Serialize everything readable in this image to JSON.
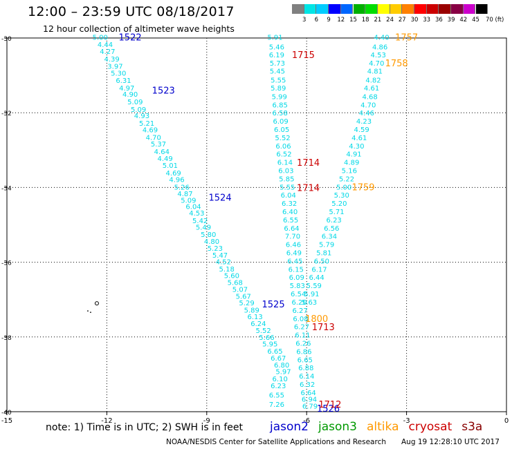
{
  "header": {
    "title": "12:00 – 23:59 UTC 08/18/2017",
    "subtitle": "12 hour collection of altimeter wave heights"
  },
  "colorbar": {
    "colors": [
      "#808080",
      "#00e5e5",
      "#00ccff",
      "#0000ff",
      "#0066ff",
      "#00b000",
      "#00dd00",
      "#ffff00",
      "#ffcc00",
      "#ff8000",
      "#ff0000",
      "#cc0000",
      "#990000",
      "#880044",
      "#cc00cc",
      "#000000"
    ],
    "ticks": [
      "3",
      "6",
      "9",
      "12",
      "15",
      "18",
      "21",
      "24",
      "27",
      "30",
      "33",
      "36",
      "39",
      "42",
      "45",
      "70 (ft)"
    ]
  },
  "map": {
    "x_axis": {
      "range": [
        -15,
        0
      ],
      "ticks": [
        -15,
        -12,
        -9,
        -6,
        -3,
        0
      ],
      "tick_labels": [
        "-15",
        "-12",
        "-9",
        "-6",
        "-3",
        "0"
      ]
    },
    "y_axis": {
      "range": [
        -40,
        -30
      ],
      "ticks": [
        -40,
        -38,
        -36,
        -34,
        -32,
        -30
      ],
      "tick_labels": [
        "-40",
        "-38",
        "-36",
        "-34",
        "-32",
        "-30"
      ]
    },
    "grid": "dotted",
    "wave_color": "#00d8e6",
    "island": {
      "label": "small island",
      "lon": -12.3,
      "lat": -37.1
    },
    "tracks": [
      {
        "satellite": "jason2",
        "color": "#00d8e6",
        "points": [
          {
            "lon": -12.2,
            "lat": -29.97,
            "swh": "5.00"
          },
          {
            "lon": -12.05,
            "lat": -30.17,
            "swh": "4.44"
          },
          {
            "lon": -11.98,
            "lat": -30.35,
            "swh": "4.27"
          },
          {
            "lon": -11.85,
            "lat": -30.55,
            "swh": "4.39"
          },
          {
            "lon": -11.75,
            "lat": -30.75,
            "swh": "3.97"
          },
          {
            "lon": -11.65,
            "lat": -30.93,
            "swh": "5.30"
          },
          {
            "lon": -11.5,
            "lat": -31.13,
            "swh": "6.31"
          },
          {
            "lon": -11.4,
            "lat": -31.33,
            "swh": "4.97"
          },
          {
            "lon": -11.3,
            "lat": -31.5,
            "swh": "4.90"
          },
          {
            "lon": -11.15,
            "lat": -31.7,
            "swh": "5.09"
          },
          {
            "lon": -11.05,
            "lat": -31.9,
            "swh": "5.09"
          },
          {
            "lon": -10.95,
            "lat": -32.07,
            "swh": "4.93"
          },
          {
            "lon": -10.8,
            "lat": -32.27,
            "swh": "5.21"
          },
          {
            "lon": -10.7,
            "lat": -32.45,
            "swh": "4.69"
          },
          {
            "lon": -10.6,
            "lat": -32.65,
            "swh": "4.70"
          },
          {
            "lon": -10.45,
            "lat": -32.83,
            "swh": "5.37"
          },
          {
            "lon": -10.35,
            "lat": -33.03,
            "swh": "4.64"
          },
          {
            "lon": -10.25,
            "lat": -33.22,
            "swh": "4.49"
          },
          {
            "lon": -10.1,
            "lat": -33.4,
            "swh": "5.01"
          },
          {
            "lon": -10.0,
            "lat": -33.6,
            "swh": "4.69"
          },
          {
            "lon": -9.9,
            "lat": -33.78,
            "swh": "4.96"
          },
          {
            "lon": -9.75,
            "lat": -33.98,
            "swh": "5.26"
          },
          {
            "lon": -9.65,
            "lat": -34.16,
            "swh": "4.87"
          },
          {
            "lon": -9.55,
            "lat": -34.33,
            "swh": "5.09"
          },
          {
            "lon": -9.4,
            "lat": -34.5,
            "swh": "6.04"
          },
          {
            "lon": -9.3,
            "lat": -34.68,
            "swh": "4.53"
          },
          {
            "lon": -9.2,
            "lat": -34.88,
            "swh": "5.42"
          },
          {
            "lon": -9.1,
            "lat": -35.06,
            "swh": "5.49"
          },
          {
            "lon": -8.95,
            "lat": -35.25,
            "swh": "5.80"
          },
          {
            "lon": -8.85,
            "lat": -35.43,
            "swh": "4.80"
          },
          {
            "lon": -8.75,
            "lat": -35.62,
            "swh": "5.23"
          },
          {
            "lon": -8.6,
            "lat": -35.8,
            "swh": "5.47"
          },
          {
            "lon": -8.5,
            "lat": -35.98,
            "swh": "4.52"
          },
          {
            "lon": -8.4,
            "lat": -36.17,
            "swh": "5.18"
          },
          {
            "lon": -8.25,
            "lat": -36.35,
            "swh": "5.60"
          },
          {
            "lon": -8.15,
            "lat": -36.53,
            "swh": "5.68"
          },
          {
            "lon": -8.0,
            "lat": -36.72,
            "swh": "5.07"
          },
          {
            "lon": -7.9,
            "lat": -36.9,
            "swh": "5.67"
          },
          {
            "lon": -7.8,
            "lat": -37.08,
            "swh": "5.29"
          },
          {
            "lon": -7.65,
            "lat": -37.27,
            "swh": "5.89"
          },
          {
            "lon": -7.55,
            "lat": -37.45,
            "swh": "6.13"
          },
          {
            "lon": -7.45,
            "lat": -37.63,
            "swh": "6.24"
          },
          {
            "lon": -7.3,
            "lat": -37.82,
            "swh": "5.52"
          },
          {
            "lon": -7.2,
            "lat": -38.0,
            "swh": "5.66"
          },
          {
            "lon": -7.1,
            "lat": -38.18,
            "swh": "5.95"
          },
          {
            "lon": -6.95,
            "lat": -38.37,
            "swh": "6.65"
          },
          {
            "lon": -6.85,
            "lat": -38.56,
            "swh": "6.67"
          },
          {
            "lon": -6.75,
            "lat": -38.74,
            "swh": "6.80"
          },
          {
            "lon": -6.7,
            "lat": -38.92,
            "swh": "5.97"
          },
          {
            "lon": -6.8,
            "lat": -39.11,
            "swh": "6.10"
          },
          {
            "lon": -6.85,
            "lat": -39.3,
            "swh": "6.23"
          },
          {
            "lon": -6.9,
            "lat": -39.55,
            "swh": "6.55"
          },
          {
            "lon": -6.9,
            "lat": -39.8,
            "swh": "7.26"
          }
        ],
        "labels": [
          {
            "lon": -11.3,
            "lat": -29.97,
            "text": "1522"
          },
          {
            "lon": -10.3,
            "lat": -31.4,
            "text": "1523"
          },
          {
            "lon": -8.6,
            "lat": -34.26,
            "text": "1524"
          },
          {
            "lon": -7.0,
            "lat": -37.12,
            "text": "1525"
          },
          {
            "lon": -5.35,
            "lat": -39.91,
            "text": "1526"
          }
        ]
      },
      {
        "satellite": "cryosat",
        "color": "#00d8e6",
        "points": [
          {
            "lon": -6.95,
            "lat": -29.97,
            "swh": "5.91"
          },
          {
            "lon": -6.9,
            "lat": -30.23,
            "swh": "5.46"
          },
          {
            "lon": -6.9,
            "lat": -30.44,
            "swh": "6.19"
          },
          {
            "lon": -6.88,
            "lat": -30.67,
            "swh": "5.73"
          },
          {
            "lon": -6.88,
            "lat": -30.88,
            "swh": "5.45"
          },
          {
            "lon": -6.85,
            "lat": -31.12,
            "swh": "5.55"
          },
          {
            "lon": -6.85,
            "lat": -31.33,
            "swh": "5.89"
          },
          {
            "lon": -6.82,
            "lat": -31.56,
            "swh": "5.99"
          },
          {
            "lon": -6.8,
            "lat": -31.78,
            "swh": "6.85"
          },
          {
            "lon": -6.8,
            "lat": -32.0,
            "swh": "6.58"
          },
          {
            "lon": -6.78,
            "lat": -32.22,
            "swh": "6.09"
          },
          {
            "lon": -6.75,
            "lat": -32.44,
            "swh": "6.05"
          },
          {
            "lon": -6.72,
            "lat": -32.66,
            "swh": "5.52"
          },
          {
            "lon": -6.7,
            "lat": -32.88,
            "swh": "6.06"
          },
          {
            "lon": -6.68,
            "lat": -33.1,
            "swh": "6.52"
          },
          {
            "lon": -6.65,
            "lat": -33.32,
            "swh": "6.14"
          },
          {
            "lon": -6.62,
            "lat": -33.54,
            "swh": "6.03"
          },
          {
            "lon": -6.6,
            "lat": -33.76,
            "swh": "5.85"
          },
          {
            "lon": -6.58,
            "lat": -33.98,
            "swh": "5.55"
          },
          {
            "lon": -6.55,
            "lat": -34.2,
            "swh": "6.04"
          },
          {
            "lon": -6.52,
            "lat": -34.42,
            "swh": "6.32"
          },
          {
            "lon": -6.5,
            "lat": -34.64,
            "swh": "6.40"
          },
          {
            "lon": -6.48,
            "lat": -34.86,
            "swh": "6.55"
          },
          {
            "lon": -6.45,
            "lat": -35.08,
            "swh": "6.64"
          },
          {
            "lon": -6.42,
            "lat": -35.3,
            "swh": "7.70"
          },
          {
            "lon": -6.4,
            "lat": -35.52,
            "swh": "6.46"
          },
          {
            "lon": -6.38,
            "lat": -35.74,
            "swh": "6.49"
          },
          {
            "lon": -6.35,
            "lat": -35.96,
            "swh": "6.45"
          },
          {
            "lon": -6.32,
            "lat": -36.18,
            "swh": "6.15"
          },
          {
            "lon": -6.3,
            "lat": -36.4,
            "swh": "6.09"
          },
          {
            "lon": -6.28,
            "lat": -36.62,
            "swh": "5.83"
          },
          {
            "lon": -6.25,
            "lat": -36.84,
            "swh": "6.54"
          },
          {
            "lon": -6.22,
            "lat": -37.06,
            "swh": "6.20"
          },
          {
            "lon": -6.2,
            "lat": -37.28,
            "swh": "6.27"
          },
          {
            "lon": -6.18,
            "lat": -37.5,
            "swh": "6.08"
          },
          {
            "lon": -6.15,
            "lat": -37.72,
            "swh": "6.27"
          },
          {
            "lon": -6.12,
            "lat": -37.94,
            "swh": "6.11"
          },
          {
            "lon": -6.1,
            "lat": -38.16,
            "swh": "6.26"
          },
          {
            "lon": -6.08,
            "lat": -38.38,
            "swh": "6.86"
          },
          {
            "lon": -6.05,
            "lat": -38.6,
            "swh": "6.65"
          },
          {
            "lon": -6.02,
            "lat": -38.82,
            "swh": "6.88"
          },
          {
            "lon": -6.0,
            "lat": -39.04,
            "swh": "6.14"
          },
          {
            "lon": -5.98,
            "lat": -39.26,
            "swh": "6.32"
          },
          {
            "lon": -5.95,
            "lat": -39.48,
            "swh": "6.64"
          },
          {
            "lon": -5.92,
            "lat": -39.66,
            "swh": "6.94"
          },
          {
            "lon": -5.9,
            "lat": -39.84,
            "swh": "6.79"
          }
        ],
        "labels": [
          {
            "lon": -6.1,
            "lat": -30.44,
            "text": "1715"
          },
          {
            "lon": -5.95,
            "lat": -33.33,
            "text": "1714"
          },
          {
            "lon": -5.95,
            "lat": -34.0,
            "text": "1714"
          },
          {
            "lon": -5.5,
            "lat": -37.73,
            "text": "1713"
          },
          {
            "lon": -5.3,
            "lat": -39.8,
            "text": "1712"
          }
        ]
      },
      {
        "satellite": "altika",
        "color": "#00d8e6",
        "points": [
          {
            "lon": -3.75,
            "lat": -29.97,
            "swh": "4.40"
          },
          {
            "lon": -3.8,
            "lat": -30.23,
            "swh": "4.86"
          },
          {
            "lon": -3.85,
            "lat": -30.44,
            "swh": "4.53"
          },
          {
            "lon": -3.9,
            "lat": -30.67,
            "swh": "4.70"
          },
          {
            "lon": -3.95,
            "lat": -30.88,
            "swh": "4.81"
          },
          {
            "lon": -4.0,
            "lat": -31.12,
            "swh": "4.82"
          },
          {
            "lon": -4.05,
            "lat": -31.33,
            "swh": "4.61"
          },
          {
            "lon": -4.1,
            "lat": -31.56,
            "swh": "4.68"
          },
          {
            "lon": -4.15,
            "lat": -31.78,
            "swh": "4.70"
          },
          {
            "lon": -4.2,
            "lat": -32.0,
            "swh": "4.46"
          },
          {
            "lon": -4.28,
            "lat": -32.22,
            "swh": "4.23"
          },
          {
            "lon": -4.35,
            "lat": -32.44,
            "swh": "4.59"
          },
          {
            "lon": -4.42,
            "lat": -32.66,
            "swh": "4.61"
          },
          {
            "lon": -4.5,
            "lat": -32.88,
            "swh": "4.30"
          },
          {
            "lon": -4.58,
            "lat": -33.1,
            "swh": "4.91"
          },
          {
            "lon": -4.65,
            "lat": -33.32,
            "swh": "4.89"
          },
          {
            "lon": -4.72,
            "lat": -33.54,
            "swh": "5.16"
          },
          {
            "lon": -4.8,
            "lat": -33.76,
            "swh": "5.22"
          },
          {
            "lon": -4.88,
            "lat": -33.98,
            "swh": "5.00"
          },
          {
            "lon": -4.95,
            "lat": -34.2,
            "swh": "5.30"
          },
          {
            "lon": -5.02,
            "lat": -34.42,
            "swh": "5.20"
          },
          {
            "lon": -5.1,
            "lat": -34.64,
            "swh": "5.71"
          },
          {
            "lon": -5.18,
            "lat": -34.86,
            "swh": "6.23"
          },
          {
            "lon": -5.25,
            "lat": -35.08,
            "swh": "6.56"
          },
          {
            "lon": -5.32,
            "lat": -35.3,
            "swh": "6.34"
          },
          {
            "lon": -5.4,
            "lat": -35.52,
            "swh": "5.79"
          },
          {
            "lon": -5.48,
            "lat": -35.74,
            "swh": "5.81"
          },
          {
            "lon": -5.55,
            "lat": -35.96,
            "swh": "6.50"
          },
          {
            "lon": -5.62,
            "lat": -36.18,
            "swh": "6.17"
          },
          {
            "lon": -5.7,
            "lat": -36.4,
            "swh": "6.44"
          },
          {
            "lon": -5.78,
            "lat": -36.62,
            "swh": "5.59"
          },
          {
            "lon": -5.85,
            "lat": -36.84,
            "swh": "5.91"
          },
          {
            "lon": -5.92,
            "lat": -37.06,
            "swh": "5.63"
          }
        ],
        "labels": [
          {
            "lon": -3.0,
            "lat": -29.97,
            "text": "1757"
          },
          {
            "lon": -3.3,
            "lat": -30.67,
            "text": "1758"
          },
          {
            "lon": -4.3,
            "lat": -33.98,
            "text": "1759"
          },
          {
            "lon": -5.7,
            "lat": -37.5,
            "text": "1800"
          }
        ]
      }
    ]
  },
  "footer": {
    "note": "note: 1) Time is in UTC; 2) SWH is in feet",
    "satellites": [
      {
        "name": "jason2",
        "color": "#0000cc"
      },
      {
        "name": "jason3",
        "color": "#009900"
      },
      {
        "name": "altika",
        "color": "#ff9900"
      },
      {
        "name": "cryosat",
        "color": "#cc0000"
      },
      {
        "name": "s3a",
        "color": "#880000"
      }
    ],
    "credit": "NOAA/NESDIS Center for Satellite Applications and Research",
    "timestamp": "Aug 19 12:28:10 UTC 2017"
  }
}
